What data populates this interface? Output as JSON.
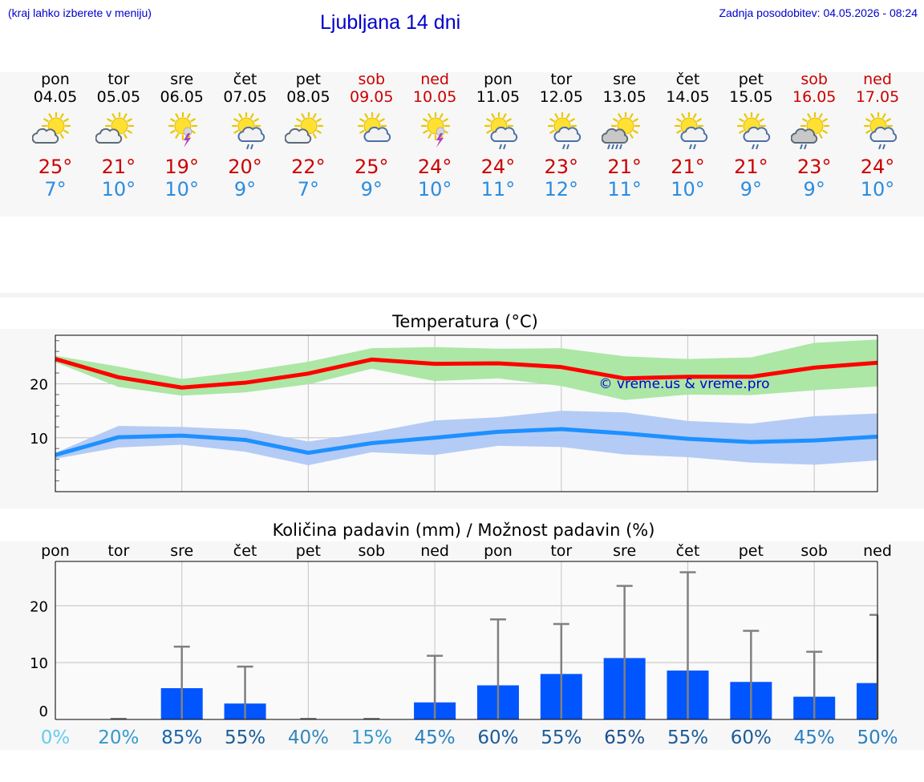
{
  "header": {
    "left_note": "(kraj lahko izberete v meniju)",
    "title": "Ljubljana 14 dni",
    "updated": "Zadnja posodobitev: 04.05.2026 - 08:24"
  },
  "forecast": [
    {
      "day": "pon",
      "date": "04.05",
      "icon": "sun-cloud-icon",
      "hi": "25°",
      "lo": "7°",
      "weekend": false
    },
    {
      "day": "tor",
      "date": "05.05",
      "icon": "sun-cloud-icon",
      "hi": "21°",
      "lo": "10°",
      "weekend": false
    },
    {
      "day": "sre",
      "date": "06.05",
      "icon": "sun-thunder-icon",
      "hi": "19°",
      "lo": "10°",
      "weekend": false
    },
    {
      "day": "čet",
      "date": "07.05",
      "icon": "sun-rain-icon",
      "hi": "20°",
      "lo": "9°",
      "weekend": false
    },
    {
      "day": "pet",
      "date": "08.05",
      "icon": "sun-cloud-icon",
      "hi": "22°",
      "lo": "7°",
      "weekend": false
    },
    {
      "day": "sob",
      "date": "09.05",
      "icon": "sun-light-cloud-icon",
      "hi": "25°",
      "lo": "9°",
      "weekend": true
    },
    {
      "day": "ned",
      "date": "10.05",
      "icon": "sun-thunder-icon",
      "hi": "24°",
      "lo": "10°",
      "weekend": true
    },
    {
      "day": "pon",
      "date": "11.05",
      "icon": "sun-rain-icon",
      "hi": "24°",
      "lo": "11°",
      "weekend": false
    },
    {
      "day": "tor",
      "date": "12.05",
      "icon": "sun-rain-icon",
      "hi": "23°",
      "lo": "12°",
      "weekend": false
    },
    {
      "day": "sre",
      "date": "13.05",
      "icon": "sun-heavy-rain-icon",
      "hi": "21°",
      "lo": "11°",
      "weekend": false
    },
    {
      "day": "čet",
      "date": "14.05",
      "icon": "sun-rain-icon",
      "hi": "21°",
      "lo": "10°",
      "weekend": false
    },
    {
      "day": "pet",
      "date": "15.05",
      "icon": "sun-rain-icon",
      "hi": "21°",
      "lo": "9°",
      "weekend": false
    },
    {
      "day": "sob",
      "date": "16.05",
      "icon": "sun-dark-rain-icon",
      "hi": "23°",
      "lo": "9°",
      "weekend": true
    },
    {
      "day": "ned",
      "date": "17.05",
      "icon": "sun-rain-icon",
      "hi": "24°",
      "lo": "10°",
      "weekend": true
    }
  ],
  "colors": {
    "accent_blue": "#0000cc",
    "hi_red": "#cc0000",
    "lo_blue": "#2a8de0",
    "max_line": "#ff0000",
    "max_band": "#a8e6a0",
    "min_line": "#1e90ff",
    "min_band": "#b0c8f4",
    "bar": "#0055ff",
    "whisker": "#808080"
  },
  "chart_data": [
    {
      "type": "line",
      "title": "Temperatura (°C)",
      "watermark": "© vreme.us & vreme.pro",
      "ylim": [
        0,
        29
      ],
      "yticks": [
        10,
        20
      ],
      "grid": true,
      "x": [
        "04.05",
        "05.05",
        "06.05",
        "07.05",
        "08.05",
        "09.05",
        "10.05",
        "11.05",
        "12.05",
        "13.05",
        "14.05",
        "15.05",
        "16.05",
        "17.05"
      ],
      "series": [
        {
          "role": "max",
          "values": [
            24.6,
            21.2,
            19.3,
            20.2,
            21.9,
            24.5,
            23.7,
            23.8,
            23.1,
            21.0,
            21.3,
            21.3,
            23.0,
            23.9
          ],
          "band_low": [
            24.0,
            19.4,
            17.8,
            18.4,
            19.9,
            22.8,
            20.5,
            21.0,
            19.6,
            17.0,
            18.0,
            17.9,
            18.8,
            19.5
          ],
          "band_high": [
            25.2,
            23.2,
            20.9,
            22.3,
            24.1,
            26.6,
            26.8,
            26.5,
            26.6,
            25.1,
            24.6,
            24.9,
            27.6,
            28.2
          ]
        },
        {
          "role": "min",
          "values": [
            6.8,
            10.1,
            10.4,
            9.6,
            7.2,
            9.0,
            10.0,
            11.1,
            11.6,
            10.8,
            9.8,
            9.2,
            9.5,
            10.2
          ],
          "band_low": [
            6.1,
            8.2,
            8.7,
            7.4,
            4.9,
            7.3,
            6.8,
            8.5,
            8.3,
            6.9,
            6.4,
            5.4,
            5.0,
            5.8
          ],
          "band_high": [
            7.2,
            12.2,
            12.0,
            11.5,
            9.3,
            11.0,
            13.2,
            13.8,
            15.0,
            14.7,
            13.1,
            12.6,
            14.0,
            14.5
          ]
        }
      ]
    },
    {
      "type": "bar",
      "title": "Količina padavin (mm) / Možnost padavin (%)",
      "categories": [
        "pon",
        "tor",
        "sre",
        "čet",
        "pet",
        "sob",
        "ned",
        "pon",
        "tor",
        "sre",
        "čet",
        "pet",
        "sob",
        "ned"
      ],
      "values": [
        0,
        0,
        5.5,
        2.8,
        0,
        0,
        3.0,
        6.0,
        8.0,
        10.8,
        8.6,
        6.6,
        4.0,
        6.4
      ],
      "error_high": [
        0,
        0.1,
        12.8,
        9.3,
        0.1,
        0.1,
        11.2,
        17.6,
        16.8,
        23.5,
        25.9,
        15.6,
        11.9,
        18.4
      ],
      "ylim": [
        0,
        27.8
      ],
      "yticks": [
        0,
        10,
        20
      ],
      "probability": [
        "0%",
        "20%",
        "85%",
        "55%",
        "40%",
        "15%",
        "45%",
        "60%",
        "55%",
        "65%",
        "55%",
        "60%",
        "45%",
        "50%"
      ],
      "probability_colors": [
        "#66ccee",
        "#3399cc",
        "#1a66aa",
        "#1a5c99",
        "#3388bb",
        "#3399cc",
        "#2a80c0",
        "#1a5c99",
        "#1a5c99",
        "#1a5090",
        "#1a5c99",
        "#1a5c99",
        "#2a80c0",
        "#2a80c0"
      ],
      "grid": true
    }
  ]
}
